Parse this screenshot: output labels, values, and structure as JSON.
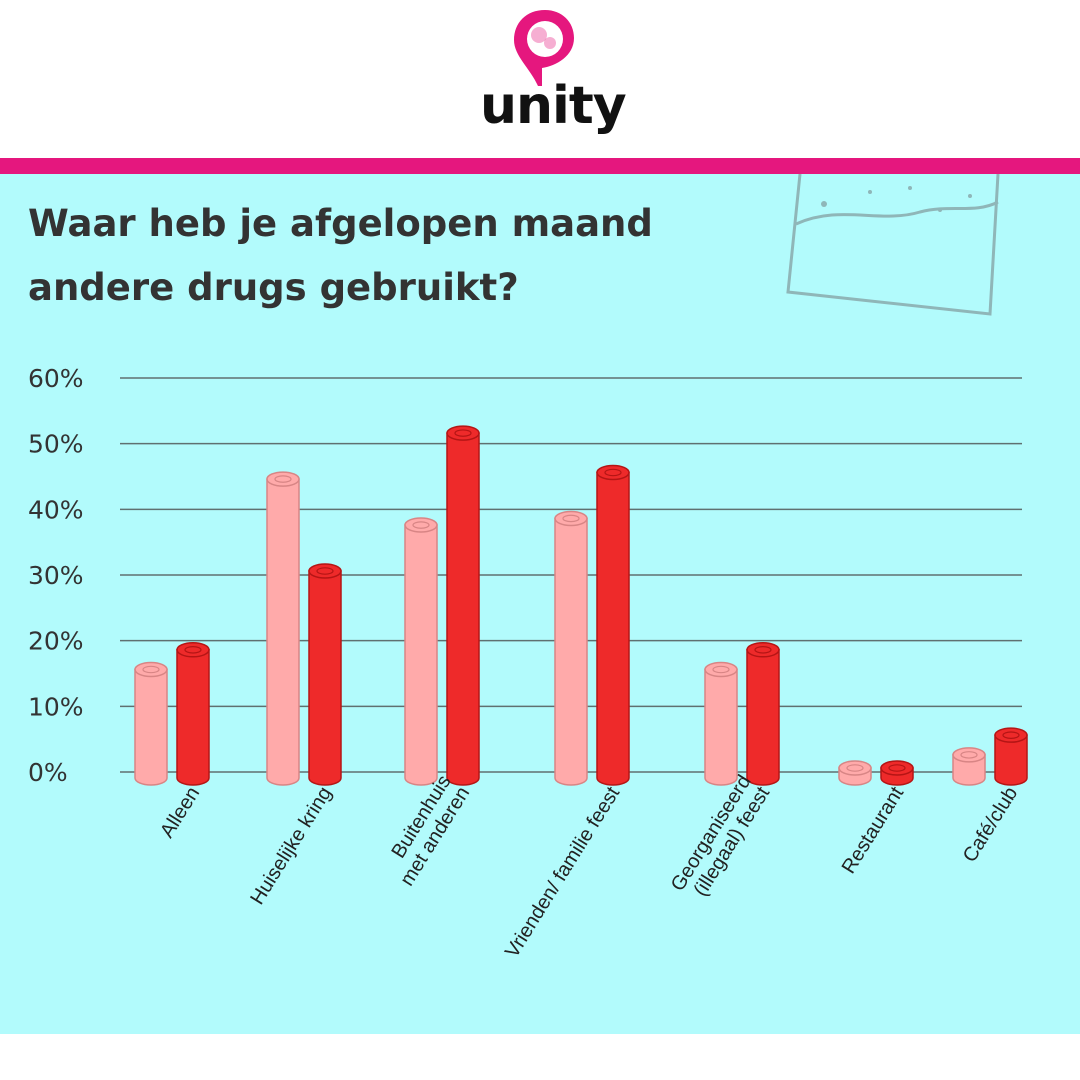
{
  "brand": {
    "name": "unity",
    "colors": {
      "accent": "#e5177e",
      "panel": "#b2fbfc"
    }
  },
  "chart_data": {
    "type": "bar",
    "title": [
      "Waar heb je afgelopen maand",
      "andere drugs gebruikt?"
    ],
    "categories": [
      [
        "Alleen"
      ],
      [
        "Huiselijke kring"
      ],
      [
        "Buitenhuis",
        "met anderen"
      ],
      [
        "Vrienden/ familie feest"
      ],
      [
        "Georganiseerd",
        "(illegaal) feest"
      ],
      [
        "Restaurant"
      ],
      [
        "Café/club"
      ]
    ],
    "series": [
      {
        "color": "#ffaaaa",
        "values": [
          15,
          44,
          37,
          38,
          15,
          0,
          2
        ]
      },
      {
        "color": "#ee2a2a",
        "values": [
          18,
          30,
          51,
          45,
          18,
          0,
          5
        ]
      }
    ],
    "ylim": [
      0,
      60
    ],
    "yticks": [
      "0%",
      "10%",
      "20%",
      "30%",
      "40%",
      "50%",
      "60%"
    ],
    "grid": true
  }
}
